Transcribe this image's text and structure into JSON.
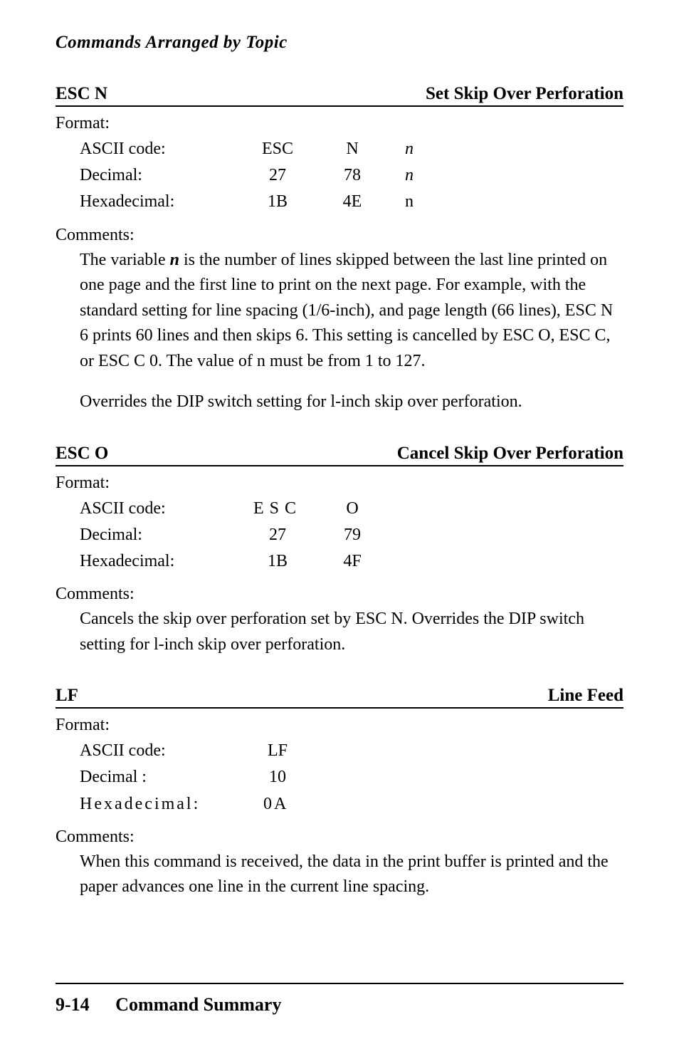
{
  "running_head": "Commands Arranged by Topic",
  "commands": [
    {
      "name": "ESC N",
      "title": "Set Skip Over Perforation",
      "format_label": "Format:",
      "rows": [
        {
          "c1": "ASCII code:",
          "c2": "ESC",
          "c3": "N",
          "c4": "n",
          "c4_italic": true
        },
        {
          "c1": "Decimal:",
          "c2": "27",
          "c3": "78",
          "c4": "n",
          "c4_italic": true
        },
        {
          "c1": "Hexadecimal:",
          "c2": "1B",
          "c3": "4E",
          "c4": "n",
          "c4_italic": false
        }
      ],
      "comments_label": "Comments:",
      "paragraphs_html": [
        "The variable <span class=\"italic\"><b>n</b></span> is the number of lines skipped between the last line printed on one page and the first line to print on the next page. For example, with the standard setting for line spacing (1/6-inch), and page length (66 lines), ESC N 6 prints 60 lines and then skips 6. This setting is cancelled by ESC O, ESC C, or ESC C 0. The value of n must be from 1 to 127.",
        "Overrides the DIP switch setting for l-inch skip over perforation."
      ]
    },
    {
      "name": "ESC O",
      "title": "Cancel Skip Over Perforation",
      "format_label": "Format:",
      "rows": [
        {
          "c1": "ASCII code:",
          "c2_spaced": "ESC",
          "c3": "O",
          "c4": ""
        },
        {
          "c1": "Decimal:",
          "c2": "27",
          "c3": "79",
          "c4": ""
        },
        {
          "c1": "Hexadecimal:",
          "c2": "1B",
          "c3": "4F",
          "c4": ""
        }
      ],
      "comments_label": "Comments:",
      "paragraphs_html": [
        "Cancels the skip over perforation set by ESC N. Overrides the DIP switch setting for l-inch skip over perforation."
      ]
    },
    {
      "name": "LF",
      "title": "Line Feed",
      "format_label": "Format:",
      "rows": [
        {
          "c1": "ASCII code:",
          "c2": "LF",
          "c3": "",
          "c4": ""
        },
        {
          "c1": "Decimal :",
          "c2": "10",
          "c3": "",
          "c4": ""
        },
        {
          "c1_spaced": "Hexadecimal:",
          "c2": "0A",
          "c3": "",
          "c4": "",
          "tight": true
        }
      ],
      "comments_label": "Comments:",
      "paragraphs_html": [
        "When this command is received, the data in the print buffer is printed and the paper advances one line in the current line spacing."
      ]
    }
  ],
  "footer": {
    "page": "9-14",
    "section": "Command Summary"
  }
}
